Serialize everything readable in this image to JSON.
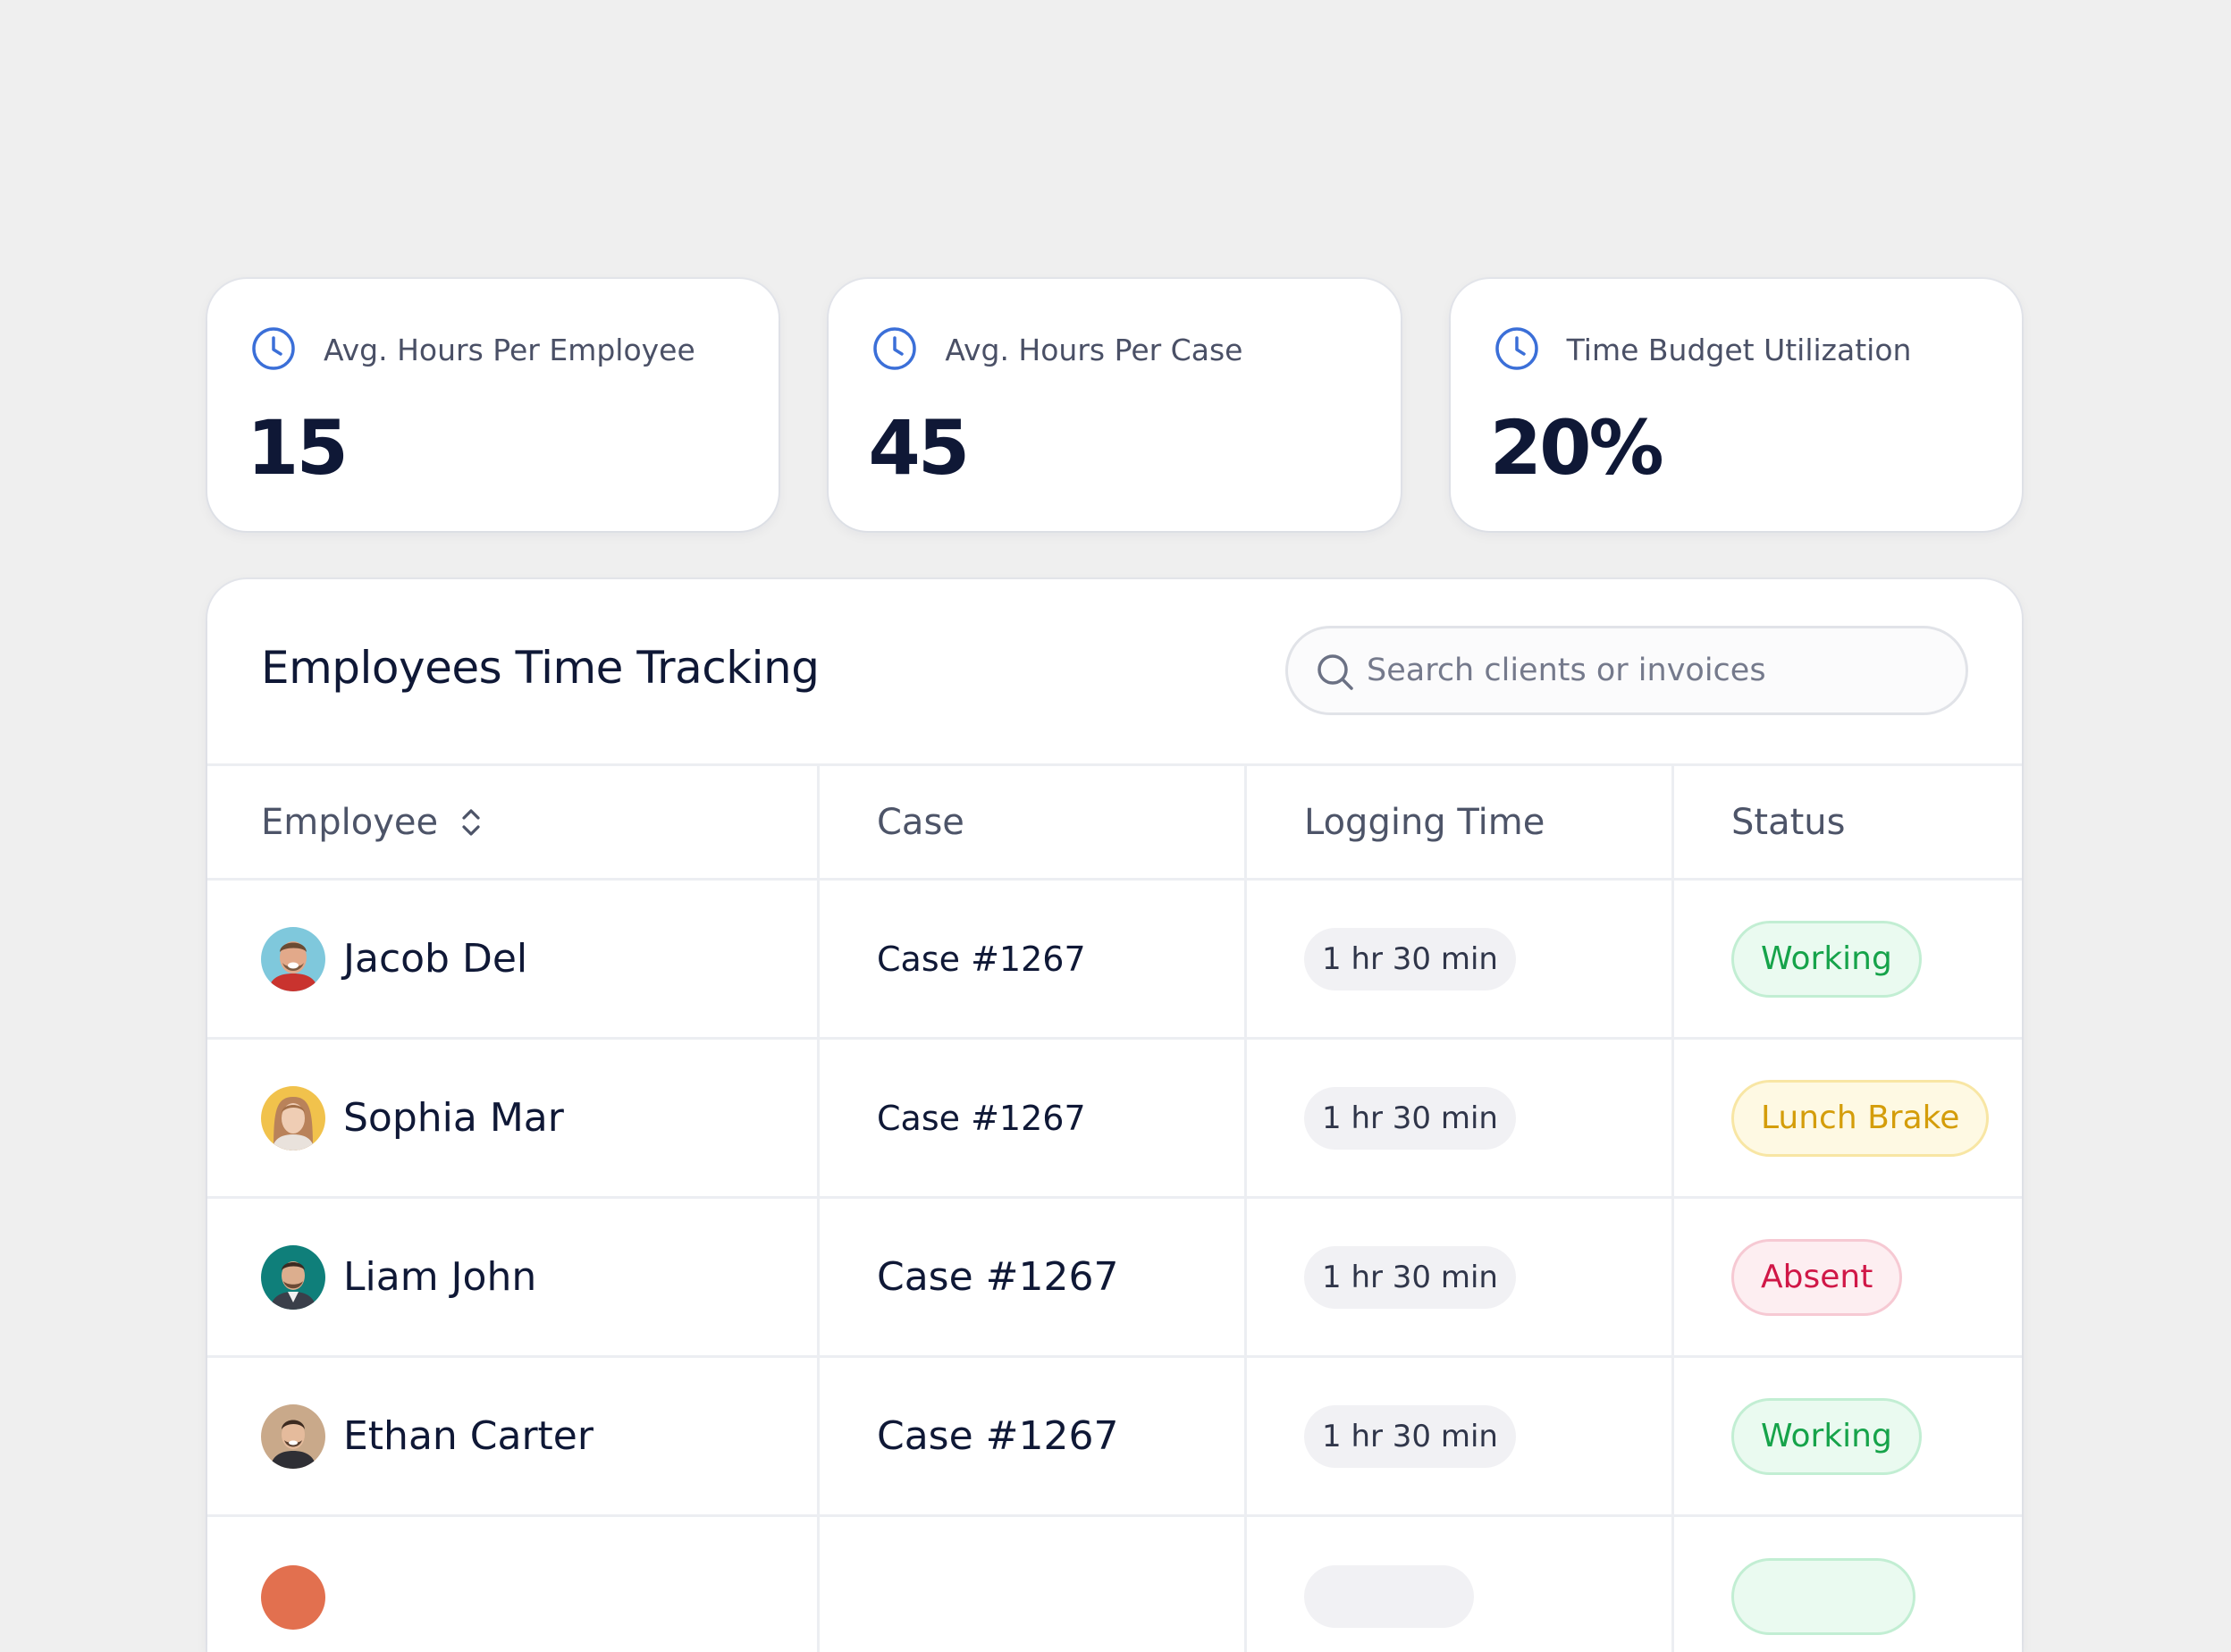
{
  "stats": [
    {
      "label": "Avg. Hours Per Employee",
      "value": "15",
      "icon": "clock-icon"
    },
    {
      "label": "Avg. Hours Per Case",
      "value": "45",
      "icon": "clock-icon"
    },
    {
      "label": "Time Budget Utilization",
      "value": "20%",
      "icon": "clock-icon"
    }
  ],
  "panel": {
    "title": "Employees Time Tracking",
    "search": {
      "placeholder": "Search clients or invoices",
      "value": ""
    }
  },
  "table": {
    "headers": {
      "employee": "Employee",
      "case": "Case",
      "logging_time": "Logging Time",
      "status": "Status"
    },
    "rows": [
      {
        "name": "Jacob Del",
        "case": "Case #1267",
        "time": "1 hr 30 min",
        "status": "Working",
        "status_type": "working"
      },
      {
        "name": "Sophia Mar",
        "case": "Case #1267",
        "time": "1 hr 30 min",
        "status": "Lunch Brake",
        "status_type": "lunch"
      },
      {
        "name": "Liam John",
        "case": "Case #1267",
        "time": "1 hr 30 min",
        "status": "Absent",
        "status_type": "absent"
      },
      {
        "name": "Ethan Carter",
        "case": "Case #1267",
        "time": "1 hr 30 min",
        "status": "Working",
        "status_type": "working"
      },
      {
        "name": "",
        "case": "",
        "time": "",
        "status": "",
        "status_type": "working"
      }
    ]
  },
  "colors": {
    "accent_icon": "#3b6fd8",
    "working": "#16a34a",
    "lunch": "#d49d0a",
    "absent": "#d01747"
  }
}
